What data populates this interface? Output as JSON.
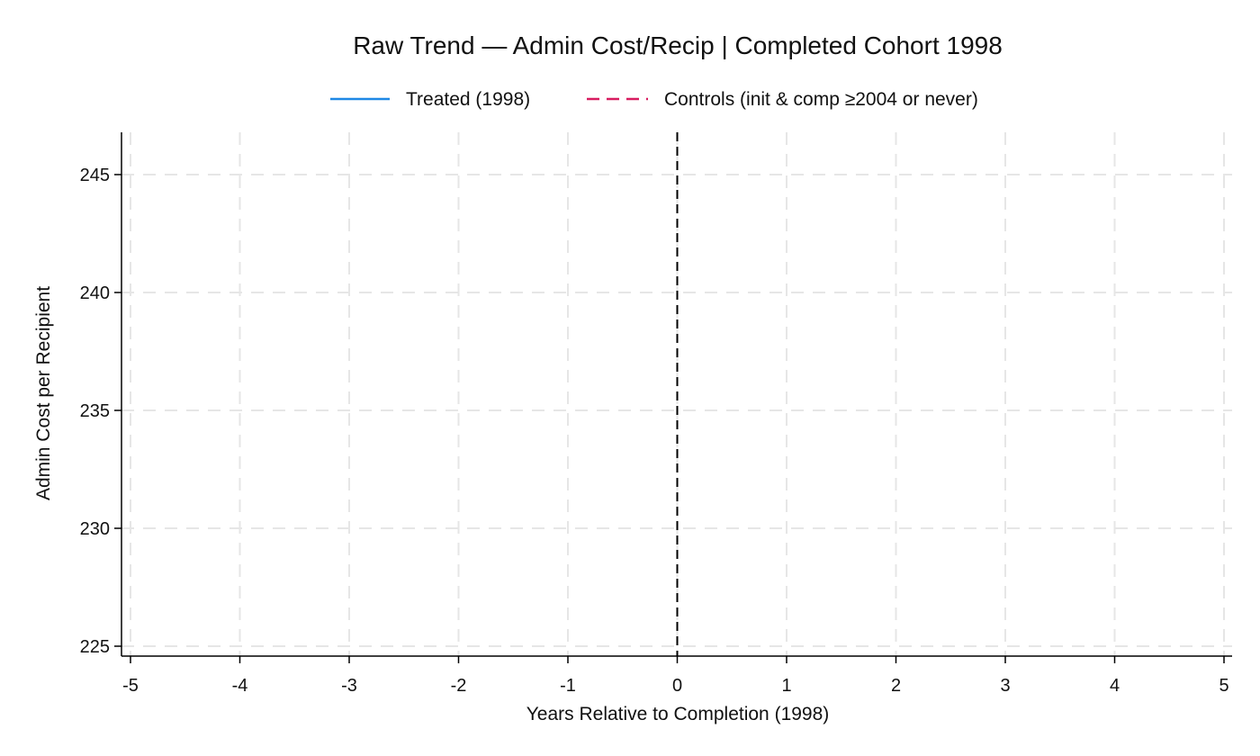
{
  "chart_data": {
    "type": "line",
    "title": "Raw Trend — Admin Cost/Recip | Completed Cohort 1998",
    "xlabel": "Years Relative to Completion (1998)",
    "ylabel": "Admin Cost per Recipient",
    "xlim": [
      -5,
      5
    ],
    "ylim": [
      224.5,
      246.8
    ],
    "x_ticks": [
      -5,
      -4,
      -3,
      -2,
      -1,
      0,
      1,
      2,
      3,
      4,
      5
    ],
    "y_ticks": [
      225,
      230,
      235,
      240,
      245
    ],
    "grid": true,
    "legend_position": "top",
    "reference_line": {
      "x": 0,
      "style": "dashed",
      "color": "#000000"
    },
    "series": [
      {
        "name": "Treated (1998)",
        "color": "#1e88e5",
        "style": "solid",
        "x": [],
        "y": []
      },
      {
        "name": "Controls (init & comp ≥2004 or never)",
        "color": "#d81b60",
        "style": "dashed",
        "x": [],
        "y": []
      }
    ]
  }
}
